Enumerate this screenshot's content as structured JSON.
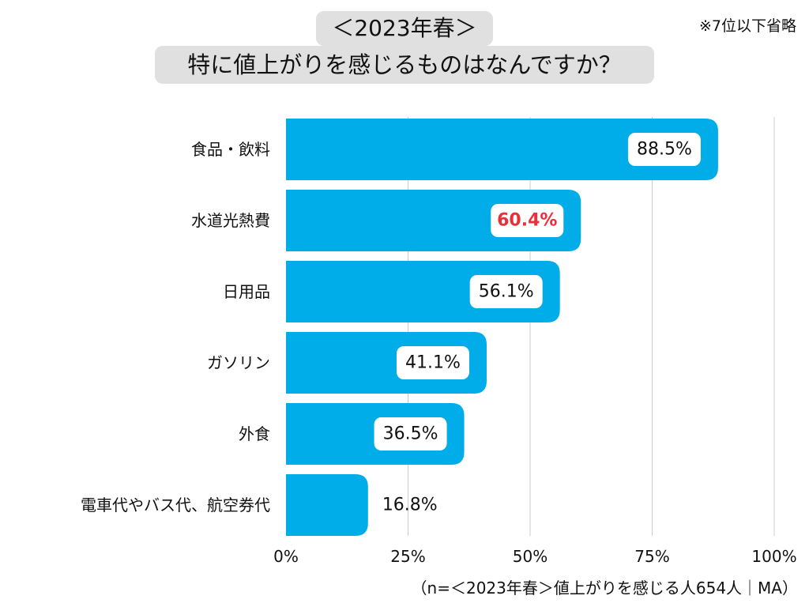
{
  "title": {
    "line1": "＜2023年春＞",
    "line2": "特に値上がりを感じるものはなんですか？"
  },
  "note": "※7位以下省略",
  "footnote": "（n=＜2023年春＞値上がりを感じる人654人｜MA）",
  "colors": {
    "bar": "#00ade8",
    "grid": "#cccccc",
    "label_box": "#ffffff",
    "label_text": "#111111",
    "highlight_text": "#e8303a",
    "title_bg": "#e0e0e0"
  },
  "chart_data": {
    "type": "bar",
    "orientation": "horizontal",
    "categories": [
      "食品・飲料",
      "水道光熱費",
      "日用品",
      "ガソリン",
      "外食",
      "電車代やバス代、航空券代"
    ],
    "values": [
      88.5,
      60.4,
      56.1,
      41.1,
      36.5,
      16.8
    ],
    "value_labels": [
      "88.5%",
      "60.4%",
      "56.1%",
      "41.1%",
      "36.5%",
      "16.8%"
    ],
    "highlight_index": 1,
    "xlim": [
      0,
      100
    ],
    "xticks": [
      0,
      25,
      50,
      75,
      100
    ],
    "xtick_labels": [
      "0%",
      "25%",
      "50%",
      "75%",
      "100%"
    ],
    "xlabel": "",
    "ylabel": ""
  }
}
